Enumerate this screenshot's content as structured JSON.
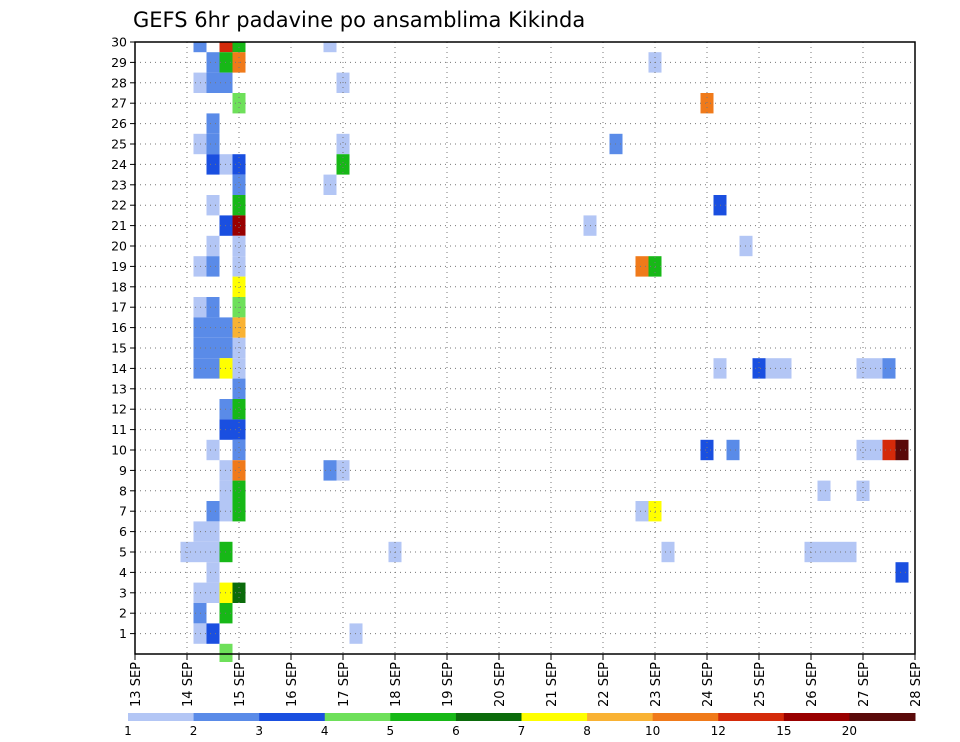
{
  "chart_data": {
    "type": "heatmap",
    "title": "GEFS 6hr padavine po ansamblima Kikinda",
    "x_tick_labels": [
      "13 SEP",
      "14 SEP",
      "15 SEP",
      "16 SEP",
      "17 SEP",
      "18 SEP",
      "19 SEP",
      "20 SEP",
      "21 SEP",
      "22 SEP",
      "23 SEP",
      "24 SEP",
      "25 SEP",
      "26 SEP",
      "27 SEP",
      "28 SEP"
    ],
    "y_tick_labels": [
      "1",
      "2",
      "3",
      "4",
      "5",
      "6",
      "7",
      "8",
      "9",
      "10",
      "11",
      "12",
      "13",
      "14",
      "15",
      "16",
      "17",
      "18",
      "19",
      "20",
      "21",
      "22",
      "23",
      "24",
      "25",
      "26",
      "27",
      "28",
      "29",
      "30"
    ],
    "x_unit": "days",
    "x_range": [
      0,
      15
    ],
    "y_range": [
      0,
      30
    ],
    "grid": true,
    "colorbar": {
      "levels": [
        "1",
        "2",
        "3",
        "4",
        "5",
        "6",
        "7",
        "8",
        "10",
        "12",
        "15",
        "20"
      ],
      "colors": [
        "#b3c6f5",
        "#5a8be8",
        "#1a4fe0",
        "#6ee05a",
        "#17b817",
        "#0b6b0b",
        "#ffff00",
        "#f9b233",
        "#f07a1a",
        "#d42a0a",
        "#990000",
        "#5a0a0a"
      ]
    },
    "cells": [
      {
        "x": 1.25,
        "y": 30,
        "c": 1
      },
      {
        "x": 1.75,
        "y": 30,
        "c": 9
      },
      {
        "x": 2.0,
        "y": 30,
        "c": 4
      },
      {
        "x": 1.5,
        "y": 29,
        "c": 1
      },
      {
        "x": 1.75,
        "y": 29,
        "c": 4
      },
      {
        "x": 2.0,
        "y": 29,
        "c": 8
      },
      {
        "x": 1.25,
        "y": 28,
        "c": 0
      },
      {
        "x": 1.5,
        "y": 28,
        "c": 1
      },
      {
        "x": 1.75,
        "y": 28,
        "c": 1
      },
      {
        "x": 2.0,
        "y": 27,
        "c": 3
      },
      {
        "x": 1.5,
        "y": 26,
        "c": 1
      },
      {
        "x": 1.25,
        "y": 25,
        "c": 0
      },
      {
        "x": 1.5,
        "y": 25,
        "c": 1
      },
      {
        "x": 1.5,
        "y": 24,
        "c": 2
      },
      {
        "x": 1.75,
        "y": 24,
        "c": 0
      },
      {
        "x": 2.0,
        "y": 24,
        "c": 2
      },
      {
        "x": 2.0,
        "y": 23,
        "c": 1
      },
      {
        "x": 1.5,
        "y": 22,
        "c": 0
      },
      {
        "x": 2.0,
        "y": 22,
        "c": 4
      },
      {
        "x": 1.75,
        "y": 21,
        "c": 2
      },
      {
        "x": 2.0,
        "y": 21,
        "c": 10
      },
      {
        "x": 1.5,
        "y": 20,
        "c": 0
      },
      {
        "x": 2.0,
        "y": 20,
        "c": 0
      },
      {
        "x": 1.25,
        "y": 19,
        "c": 0
      },
      {
        "x": 1.5,
        "y": 19,
        "c": 1
      },
      {
        "x": 2.0,
        "y": 19,
        "c": 0
      },
      {
        "x": 2.0,
        "y": 18,
        "c": 6
      },
      {
        "x": 1.25,
        "y": 17,
        "c": 0
      },
      {
        "x": 1.5,
        "y": 17,
        "c": 1
      },
      {
        "x": 2.0,
        "y": 17,
        "c": 3
      },
      {
        "x": 1.25,
        "y": 16,
        "c": 1
      },
      {
        "x": 1.5,
        "y": 16,
        "c": 1
      },
      {
        "x": 1.75,
        "y": 16,
        "c": 1
      },
      {
        "x": 2.0,
        "y": 16,
        "c": 7
      },
      {
        "x": 1.25,
        "y": 15,
        "c": 1
      },
      {
        "x": 1.5,
        "y": 15,
        "c": 1
      },
      {
        "x": 1.75,
        "y": 15,
        "c": 1
      },
      {
        "x": 2.0,
        "y": 15,
        "c": 0
      },
      {
        "x": 1.25,
        "y": 14,
        "c": 1
      },
      {
        "x": 1.5,
        "y": 14,
        "c": 1
      },
      {
        "x": 1.75,
        "y": 14,
        "c": 6
      },
      {
        "x": 2.0,
        "y": 14,
        "c": 0
      },
      {
        "x": 2.0,
        "y": 13,
        "c": 1
      },
      {
        "x": 1.75,
        "y": 12,
        "c": 1
      },
      {
        "x": 2.0,
        "y": 12,
        "c": 4
      },
      {
        "x": 1.75,
        "y": 11,
        "c": 2
      },
      {
        "x": 2.0,
        "y": 11,
        "c": 2
      },
      {
        "x": 1.5,
        "y": 10,
        "c": 0
      },
      {
        "x": 2.0,
        "y": 10,
        "c": 1
      },
      {
        "x": 1.75,
        "y": 9,
        "c": 0
      },
      {
        "x": 2.0,
        "y": 9,
        "c": 8
      },
      {
        "x": 1.75,
        "y": 8,
        "c": 0
      },
      {
        "x": 2.0,
        "y": 8,
        "c": 4
      },
      {
        "x": 1.5,
        "y": 7,
        "c": 1
      },
      {
        "x": 1.75,
        "y": 7,
        "c": 0
      },
      {
        "x": 2.0,
        "y": 7,
        "c": 4
      },
      {
        "x": 1.25,
        "y": 6,
        "c": 0
      },
      {
        "x": 1.5,
        "y": 6,
        "c": 0
      },
      {
        "x": 1.0,
        "y": 5,
        "c": 0
      },
      {
        "x": 1.25,
        "y": 5,
        "c": 0
      },
      {
        "x": 1.5,
        "y": 5,
        "c": 0
      },
      {
        "x": 1.75,
        "y": 5,
        "c": 4
      },
      {
        "x": 1.5,
        "y": 4,
        "c": 0
      },
      {
        "x": 1.25,
        "y": 3,
        "c": 0
      },
      {
        "x": 1.5,
        "y": 3,
        "c": 0
      },
      {
        "x": 1.75,
        "y": 3,
        "c": 6
      },
      {
        "x": 2.0,
        "y": 3,
        "c": 5
      },
      {
        "x": 1.25,
        "y": 2,
        "c": 1
      },
      {
        "x": 1.75,
        "y": 2,
        "c": 4
      },
      {
        "x": 1.25,
        "y": 1,
        "c": 0
      },
      {
        "x": 1.5,
        "y": 1,
        "c": 2
      },
      {
        "x": 1.75,
        "y": 0,
        "c": 3
      },
      {
        "x": 3.75,
        "y": 30,
        "c": 0
      },
      {
        "x": 4.0,
        "y": 28,
        "c": 0
      },
      {
        "x": 4.0,
        "y": 25,
        "c": 0
      },
      {
        "x": 4.0,
        "y": 24,
        "c": 4
      },
      {
        "x": 3.75,
        "y": 23,
        "c": 0
      },
      {
        "x": 3.75,
        "y": 9,
        "c": 1
      },
      {
        "x": 4.0,
        "y": 9,
        "c": 0
      },
      {
        "x": 5.0,
        "y": 5,
        "c": 0
      },
      {
        "x": 4.25,
        "y": 1,
        "c": 0
      },
      {
        "x": 10.0,
        "y": 29,
        "c": 0
      },
      {
        "x": 9.25,
        "y": 25,
        "c": 1
      },
      {
        "x": 8.75,
        "y": 21,
        "c": 0
      },
      {
        "x": 9.75,
        "y": 19,
        "c": 8
      },
      {
        "x": 10.0,
        "y": 19,
        "c": 4
      },
      {
        "x": 9.75,
        "y": 7,
        "c": 0
      },
      {
        "x": 10.0,
        "y": 7,
        "c": 6
      },
      {
        "x": 10.25,
        "y": 5,
        "c": 0
      },
      {
        "x": 11.0,
        "y": 27,
        "c": 8
      },
      {
        "x": 11.25,
        "y": 22,
        "c": 2
      },
      {
        "x": 11.25,
        "y": 14,
        "c": 0
      },
      {
        "x": 11.0,
        "y": 10,
        "c": 2
      },
      {
        "x": 11.5,
        "y": 10,
        "c": 1
      },
      {
        "x": 11.75,
        "y": 20,
        "c": 0
      },
      {
        "x": 12.0,
        "y": 14,
        "c": 2
      },
      {
        "x": 12.25,
        "y": 14,
        "c": 0
      },
      {
        "x": 12.5,
        "y": 14,
        "c": 0
      },
      {
        "x": 13.25,
        "y": 8,
        "c": 0
      },
      {
        "x": 13.0,
        "y": 5,
        "c": 0
      },
      {
        "x": 13.25,
        "y": 5,
        "c": 0
      },
      {
        "x": 13.5,
        "y": 5,
        "c": 0
      },
      {
        "x": 13.75,
        "y": 5,
        "c": 0
      },
      {
        "x": 14.0,
        "y": 14,
        "c": 0
      },
      {
        "x": 14.25,
        "y": 14,
        "c": 0
      },
      {
        "x": 14.5,
        "y": 14,
        "c": 1
      },
      {
        "x": 14.0,
        "y": 10,
        "c": 0
      },
      {
        "x": 14.25,
        "y": 10,
        "c": 0
      },
      {
        "x": 14.5,
        "y": 10,
        "c": 9
      },
      {
        "x": 14.75,
        "y": 10,
        "c": 11
      },
      {
        "x": 14.0,
        "y": 8,
        "c": 0
      },
      {
        "x": 14.75,
        "y": 4,
        "c": 2
      }
    ]
  }
}
